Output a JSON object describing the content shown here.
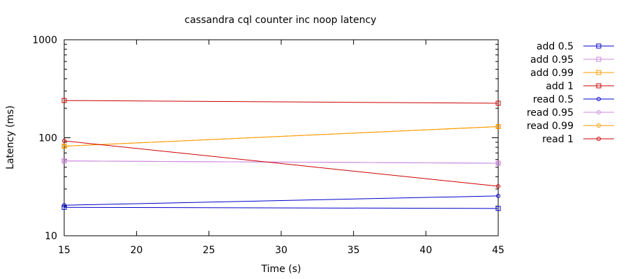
{
  "chart_data": {
    "type": "line",
    "title": "cassandra cql counter inc noop latency",
    "xlabel": "Time (s)",
    "ylabel": "Latency (ms)",
    "xlim": [
      15,
      45
    ],
    "ylim": [
      10,
      1000
    ],
    "yscale": "log",
    "grid": false,
    "legend": "right-outside",
    "x_ticks": [
      15,
      20,
      25,
      30,
      35,
      40,
      45
    ],
    "y_ticks": [
      10,
      100,
      1000
    ],
    "x": [
      15,
      45
    ],
    "series": [
      {
        "name": "add 0.5",
        "values": [
          19.5,
          19.0
        ],
        "color": "#0000cc",
        "marker": "square"
      },
      {
        "name": "add 0.95",
        "values": [
          58,
          55
        ],
        "color": "#cc88dd",
        "marker": "square"
      },
      {
        "name": "add 0.99",
        "values": [
          82,
          130
        ],
        "color": "#ff9900",
        "marker": "square"
      },
      {
        "name": "add 1",
        "values": [
          240,
          225
        ],
        "color": "#cc0000",
        "marker": "square"
      },
      {
        "name": "read 0.5",
        "values": [
          20.5,
          25.5
        ],
        "color": "#0000cc",
        "marker": "circle"
      },
      {
        "name": "read 0.95",
        "values": [
          58,
          55
        ],
        "color": "#cc88dd",
        "marker": "circle"
      },
      {
        "name": "read 0.99",
        "values": [
          82,
          130
        ],
        "color": "#ff9900",
        "marker": "circle"
      },
      {
        "name": "read 1",
        "values": [
          93,
          32
        ],
        "color": "#cc0000",
        "marker": "circle"
      }
    ]
  }
}
